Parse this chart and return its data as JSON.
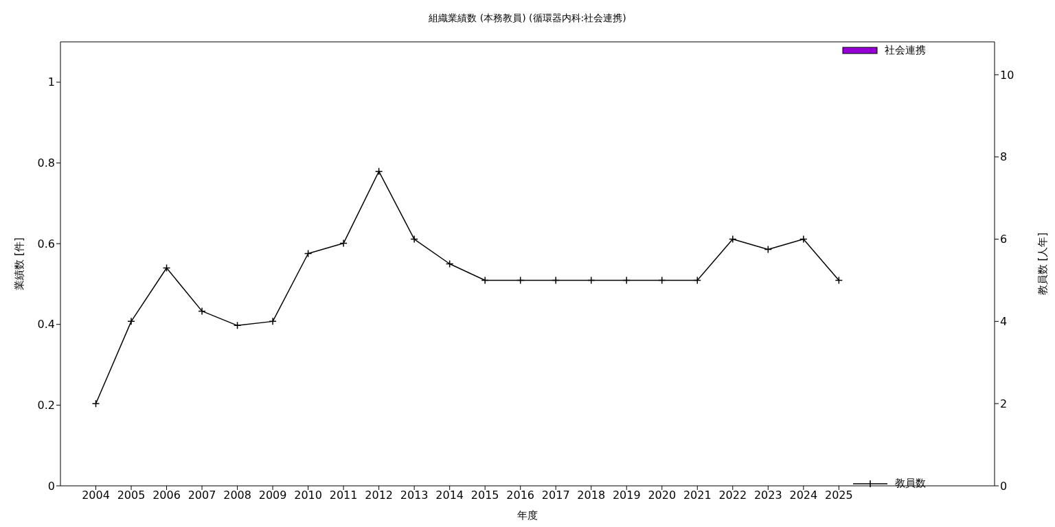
{
  "chart_data": {
    "type": "bar",
    "title": "組織業績数 (本務教員) (循環器内科:社会連携)",
    "xlabel": "年度",
    "ylabel": "業績数 [件]",
    "y2label": "教員数 [人年]",
    "x": [
      2004,
      2005,
      2006,
      2007,
      2008,
      2009,
      2010,
      2011,
      2012,
      2013,
      2014,
      2015,
      2016,
      2017,
      2018,
      2019,
      2020,
      2021,
      2022,
      2023,
      2024,
      2025
    ],
    "xlim": [
      2003,
      2029.4
    ],
    "xticks": [
      2004,
      2005,
      2006,
      2007,
      2008,
      2009,
      2010,
      2011,
      2012,
      2013,
      2014,
      2015,
      2016,
      2017,
      2018,
      2019,
      2020,
      2021,
      2022,
      2023,
      2024,
      2025
    ],
    "ylim": [
      0,
      1.1
    ],
    "yticks": [
      0,
      0.2,
      0.4,
      0.6,
      0.8,
      1
    ],
    "y2lim": [
      0,
      10.8
    ],
    "y2ticks": [
      0,
      2,
      4,
      6,
      8,
      10
    ],
    "series": [
      {
        "name": "社会連携",
        "color": "#9400d3",
        "values": [
          0,
          0,
          0,
          0,
          0,
          0,
          0,
          0,
          0,
          0,
          0,
          0,
          0,
          0,
          0,
          0,
          0,
          0,
          0,
          0,
          0,
          0
        ]
      },
      {
        "name": "教員数",
        "type": "line",
        "axis": "y2",
        "color": "#000000",
        "marker": "cross",
        "values": [
          2,
          4,
          5.3,
          4.25,
          3.9,
          4,
          5.65,
          5.9,
          7.65,
          6,
          5.4,
          5,
          5,
          5,
          5,
          5,
          5,
          5,
          6,
          5.75,
          6,
          5
        ]
      }
    ],
    "legend": "right"
  }
}
